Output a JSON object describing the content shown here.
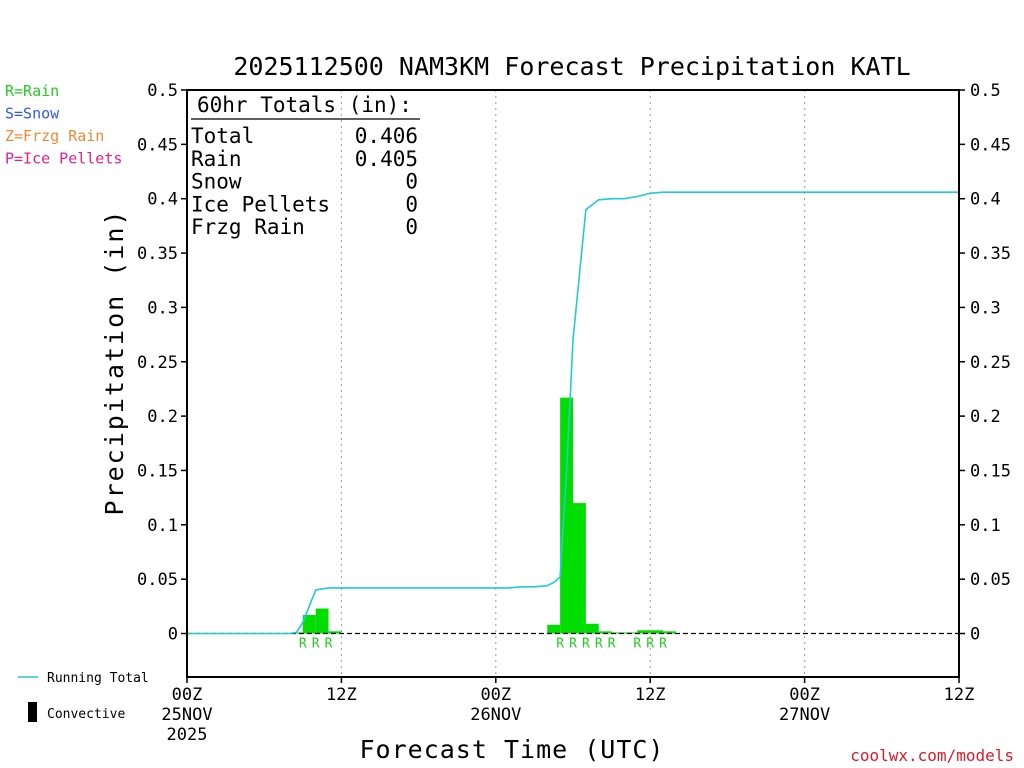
{
  "chart_data": {
    "type": "bar",
    "title": "2025112500 NAM3KM Forecast Precipitation KATL",
    "xlabel": "Forecast Time (UTC)",
    "ylabel": "Precipitation (in)",
    "ylim": [
      -0.04,
      0.5
    ],
    "yticks": [
      0,
      0.05,
      0.1,
      0.15,
      0.2,
      0.25,
      0.3,
      0.35,
      0.4,
      0.45,
      0.5
    ],
    "ytick_labels": [
      "0",
      "0.05",
      "0.1",
      "0.15",
      "0.2",
      "0.25",
      "0.3",
      "0.35",
      "0.4",
      "0.45",
      "0.5"
    ],
    "xlim_hours": [
      0,
      60
    ],
    "xticks": [
      {
        "hour": 0,
        "label": "00Z",
        "date": "25NOV",
        "year": "2025"
      },
      {
        "hour": 12,
        "label": "12Z",
        "date": "",
        "year": ""
      },
      {
        "hour": 24,
        "label": "00Z",
        "date": "26NOV",
        "year": ""
      },
      {
        "hour": 36,
        "label": "12Z",
        "date": "",
        "year": ""
      },
      {
        "hour": 48,
        "label": "00Z",
        "date": "27NOV",
        "year": ""
      },
      {
        "hour": 60,
        "label": "12Z",
        "date": "",
        "year": ""
      }
    ],
    "grid_hours": [
      12,
      24,
      36,
      48
    ],
    "precip_types": [
      {
        "code": "R",
        "label": "R=Rain",
        "color": "#22cc22"
      },
      {
        "code": "S",
        "label": "S=Snow",
        "color": "#3355ee"
      },
      {
        "code": "Z",
        "label": "Z=Frzg Rain",
        "color": "#ee8833"
      },
      {
        "code": "P",
        "label": "P=Ice Pellets",
        "color": "#e0208a"
      }
    ],
    "bar_color": "#00dd00",
    "bars": [
      {
        "hour": 8.5,
        "value": 0.001
      },
      {
        "hour": 9.5,
        "value": 0.017
      },
      {
        "hour": 10.5,
        "value": 0.023
      },
      {
        "hour": 11.5,
        "value": 0.002
      },
      {
        "hour": 28.5,
        "value": 0.008
      },
      {
        "hour": 29.5,
        "value": 0.217
      },
      {
        "hour": 30.5,
        "value": 0.12
      },
      {
        "hour": 31.5,
        "value": 0.009
      },
      {
        "hour": 32.5,
        "value": 0.002
      },
      {
        "hour": 33.5,
        "value": 0.001
      },
      {
        "hour": 34.5,
        "value": 0.001
      },
      {
        "hour": 35.5,
        "value": 0.003
      },
      {
        "hour": 36.5,
        "value": 0.003
      },
      {
        "hour": 37.5,
        "value": 0.002
      }
    ],
    "ptype_marks": [
      {
        "hour": 9,
        "code": "R"
      },
      {
        "hour": 10,
        "code": "R"
      },
      {
        "hour": 11,
        "code": "R"
      },
      {
        "hour": 29,
        "code": "R"
      },
      {
        "hour": 30,
        "code": "R"
      },
      {
        "hour": 31,
        "code": "R"
      },
      {
        "hour": 32,
        "code": "R"
      },
      {
        "hour": 33,
        "code": "R"
      },
      {
        "hour": 35,
        "code": "R"
      },
      {
        "hour": 36,
        "code": "R"
      },
      {
        "hour": 37,
        "code": "R"
      }
    ],
    "running_total": {
      "name": "Running Total",
      "color": "#22cccc",
      "x": [
        0,
        7.5,
        8,
        8.5,
        9,
        10,
        11,
        12,
        16,
        20,
        24,
        25,
        26,
        27,
        28,
        28.5,
        29,
        29.5,
        30,
        30.5,
        31,
        32,
        33,
        34,
        35,
        36,
        37,
        60
      ],
      "y": [
        0,
        0,
        0.0,
        0.001,
        0.01,
        0.04,
        0.042,
        0.042,
        0.042,
        0.042,
        0.042,
        0.042,
        0.043,
        0.043,
        0.044,
        0.047,
        0.052,
        0.15,
        0.27,
        0.33,
        0.39,
        0.399,
        0.4,
        0.4,
        0.402,
        0.405,
        0.406,
        0.406
      ]
    },
    "totals_box": {
      "heading": "60hr Totals (in):",
      "rows": [
        {
          "label": "Total",
          "value": "0.406"
        },
        {
          "label": "Rain",
          "value": "0.405"
        },
        {
          "label": "Snow",
          "value": "0"
        },
        {
          "label": "Ice Pellets",
          "value": "0"
        },
        {
          "label": "Frzg Rain",
          "value": "0"
        }
      ]
    },
    "legend": {
      "running_total_label": "Running Total",
      "convective_label": "Convective"
    },
    "credit": "coolwx.com/models"
  }
}
